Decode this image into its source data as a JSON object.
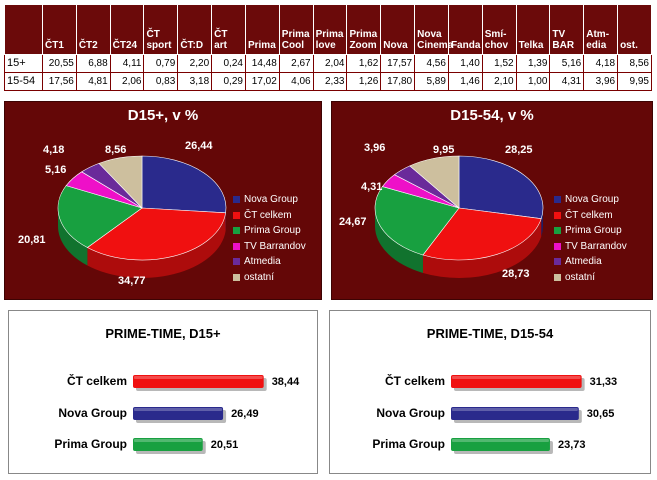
{
  "table": {
    "headers": [
      "ČT1",
      "ČT2",
      "ČT24",
      "ČT sport",
      "ČT:D",
      "ČT art",
      "Prima",
      "Prima Cool",
      "Prima love",
      "Prima Zoom",
      "Nova",
      "Nova Cinema",
      "Fanda",
      "Smí-chov",
      "Telka",
      "TV BAR",
      "Atm-edia",
      "ost."
    ],
    "rows": [
      {
        "label": "15+",
        "values": [
          "20,55",
          "6,88",
          "4,11",
          "0,79",
          "2,20",
          "0,24",
          "14,48",
          "2,67",
          "2,04",
          "1,62",
          "17,57",
          "4,56",
          "1,40",
          "1,52",
          "1,39",
          "5,16",
          "4,18",
          "8,56"
        ]
      },
      {
        "label": "15-54",
        "values": [
          "17,56",
          "4,81",
          "2,06",
          "0,83",
          "3,18",
          "0,29",
          "17,02",
          "4,06",
          "2,33",
          "1,26",
          "17,80",
          "5,89",
          "1,46",
          "2,10",
          "1,00",
          "4,31",
          "3,96",
          "9,95"
        ]
      }
    ]
  },
  "colors": {
    "nova": "#2a2a8c",
    "ct": "#f01010",
    "prima": "#18a040",
    "tvb": "#ee10c8",
    "atm": "#6a2a9a",
    "ost": "#cdbf9e"
  },
  "legend": [
    "Nova Group",
    "ČT celkem",
    "Prima Group",
    "TV Barrandov",
    "Atmedia",
    "ostatní"
  ],
  "chart_data": [
    {
      "type": "pie",
      "title": "D15+, v %",
      "categories": [
        "Nova Group",
        "ČT celkem",
        "Prima Group",
        "TV Barrandov",
        "Atmedia",
        "ostatní"
      ],
      "values": [
        26.44,
        34.77,
        20.81,
        5.16,
        4.18,
        8.56
      ],
      "labels": [
        "26,44",
        "34,77",
        "20,81",
        "5,16",
        "4,18",
        "8,56"
      ],
      "legend_position": "right"
    },
    {
      "type": "pie",
      "title": "D15-54, v %",
      "categories": [
        "Nova Group",
        "ČT celkem",
        "Prima Group",
        "TV Barrandov",
        "Atmedia",
        "ostatní"
      ],
      "values": [
        28.25,
        28.73,
        24.67,
        4.31,
        3.96,
        9.95
      ],
      "labels": [
        "28,25",
        "28,73",
        "24,67",
        "4,31",
        "3,96",
        "9,95"
      ],
      "legend_position": "right"
    },
    {
      "type": "bar",
      "title": "PRIME-TIME, D15+",
      "categories": [
        "ČT celkem",
        "Nova Group",
        "Prima Group"
      ],
      "values": [
        38.44,
        26.49,
        20.51
      ],
      "labels": [
        "38,44",
        "26,49",
        "20,51"
      ],
      "orientation": "horizontal",
      "xlim": [
        0,
        40
      ]
    },
    {
      "type": "bar",
      "title": "PRIME-TIME, D15-54",
      "categories": [
        "ČT celkem",
        "Nova Group",
        "Prima Group"
      ],
      "values": [
        31.33,
        30.65,
        23.73
      ],
      "labels": [
        "31,33",
        "30,65",
        "23,73"
      ],
      "orientation": "horizontal",
      "xlim": [
        0,
        40
      ]
    }
  ]
}
